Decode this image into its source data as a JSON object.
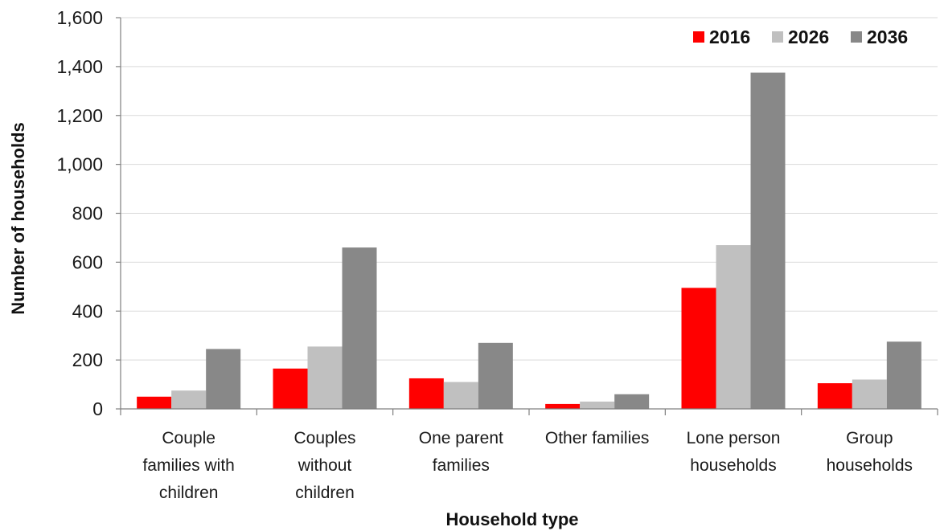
{
  "chart_data": {
    "type": "bar",
    "categories": [
      [
        "Couple",
        "families with",
        "children"
      ],
      [
        "Couples",
        "without",
        "children"
      ],
      [
        "One parent",
        "families"
      ],
      [
        "Other families"
      ],
      [
        "Lone person",
        "households"
      ],
      [
        "Group",
        "households"
      ]
    ],
    "series": [
      {
        "name": "2016",
        "color": "#ff0000",
        "values": [
          50,
          165,
          125,
          20,
          495,
          105
        ]
      },
      {
        "name": "2026",
        "color": "#c0c0c0",
        "values": [
          75,
          255,
          110,
          30,
          670,
          120
        ]
      },
      {
        "name": "2036",
        "color": "#888888",
        "values": [
          245,
          660,
          270,
          60,
          1375,
          275
        ]
      }
    ],
    "y_ticks": [
      "0",
      "200",
      "400",
      "600",
      "800",
      "1,000",
      "1,200",
      "1,400",
      "1,600"
    ],
    "ylim": [
      0,
      1600
    ],
    "xlabel": "Household type",
    "ylabel": "Number of households",
    "legend_position": "top-right",
    "grid": true
  }
}
